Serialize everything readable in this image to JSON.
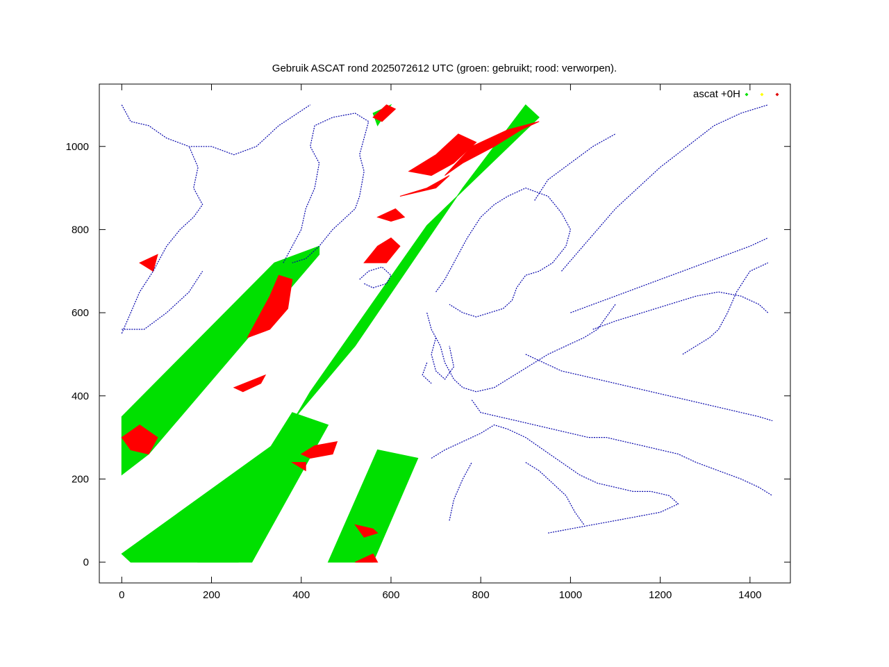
{
  "chart_data": {
    "type": "scatter",
    "title": "Gebruik ASCAT rond 2025072612 UTC (groen: gebruikt; rood: verworpen).",
    "xlabel": "",
    "ylabel": "",
    "xlim": [
      -50,
      1490
    ],
    "ylim": [
      -50,
      1150
    ],
    "x_ticks": [
      0,
      200,
      400,
      600,
      800,
      1000,
      1200,
      1400
    ],
    "y_ticks": [
      0,
      200,
      400,
      600,
      800,
      1000
    ],
    "grid": false,
    "legend": {
      "placement": "top-right",
      "label": "ascat +0H",
      "marker_colors": [
        "#00e000",
        "#ffff00",
        "#e00000"
      ]
    },
    "colors": {
      "used": "#00e000",
      "rejected": "#ff0000",
      "coastline": "#0000aa"
    },
    "swaths_used": [
      [
        [
          0,
          210
        ],
        [
          0,
          350
        ],
        [
          340,
          720
        ],
        [
          440,
          760
        ],
        [
          440,
          740
        ],
        [
          60,
          260
        ]
      ],
      [
        [
          0,
          20
        ],
        [
          20,
          0
        ],
        [
          260,
          0
        ],
        [
          380,
          340
        ],
        [
          520,
          520
        ],
        [
          760,
          900
        ],
        [
          900,
          1100
        ],
        [
          930,
          1070
        ],
        [
          680,
          810
        ],
        [
          420,
          410
        ],
        [
          360,
          300
        ]
      ],
      [
        [
          170,
          0
        ],
        [
          290,
          0
        ],
        [
          460,
          330
        ],
        [
          380,
          360
        ]
      ],
      [
        [
          460,
          0
        ],
        [
          560,
          0
        ],
        [
          660,
          250
        ],
        [
          570,
          270
        ]
      ],
      [
        [
          560,
          1080
        ],
        [
          600,
          1100
        ],
        [
          570,
          1050
        ]
      ]
    ],
    "regions_rejected": [
      [
        [
          280,
          540
        ],
        [
          300,
          580
        ],
        [
          330,
          640
        ],
        [
          350,
          690
        ],
        [
          380,
          680
        ],
        [
          370,
          610
        ],
        [
          330,
          560
        ]
      ],
      [
        [
          0,
          300
        ],
        [
          40,
          330
        ],
        [
          80,
          300
        ],
        [
          60,
          260
        ],
        [
          20,
          270
        ]
      ],
      [
        [
          250,
          420
        ],
        [
          320,
          450
        ],
        [
          310,
          430
        ],
        [
          270,
          410
        ]
      ],
      [
        [
          400,
          260
        ],
        [
          430,
          280
        ],
        [
          480,
          290
        ],
        [
          470,
          260
        ],
        [
          420,
          250
        ]
      ],
      [
        [
          380,
          240
        ],
        [
          410,
          240
        ],
        [
          410,
          220
        ]
      ],
      [
        [
          520,
          90
        ],
        [
          560,
          80
        ],
        [
          570,
          70
        ],
        [
          540,
          60
        ]
      ],
      [
        [
          520,
          0
        ],
        [
          570,
          0
        ],
        [
          560,
          20
        ]
      ],
      [
        [
          540,
          720
        ],
        [
          570,
          760
        ],
        [
          600,
          780
        ],
        [
          620,
          760
        ],
        [
          590,
          720
        ]
      ],
      [
        [
          570,
          830
        ],
        [
          610,
          850
        ],
        [
          630,
          830
        ],
        [
          600,
          820
        ]
      ],
      [
        [
          720,
          930
        ],
        [
          780,
          1000
        ],
        [
          860,
          1040
        ],
        [
          930,
          1060
        ],
        [
          890,
          1040
        ],
        [
          830,
          1000
        ],
        [
          760,
          960
        ]
      ],
      [
        [
          620,
          880
        ],
        [
          680,
          900
        ],
        [
          730,
          930
        ],
        [
          700,
          900
        ]
      ],
      [
        [
          560,
          1070
        ],
        [
          590,
          1100
        ],
        [
          610,
          1090
        ],
        [
          580,
          1060
        ]
      ],
      [
        [
          40,
          720
        ],
        [
          80,
          740
        ],
        [
          70,
          700
        ]
      ],
      [
        [
          640,
          940
        ],
        [
          700,
          980
        ],
        [
          750,
          1030
        ],
        [
          790,
          1010
        ],
        [
          740,
          960
        ],
        [
          690,
          930
        ]
      ]
    ],
    "coastlines": [
      [
        [
          0,
          1100
        ],
        [
          20,
          1060
        ],
        [
          60,
          1050
        ],
        [
          100,
          1020
        ],
        [
          150,
          1000
        ],
        [
          200,
          1000
        ],
        [
          250,
          980
        ],
        [
          300,
          1000
        ],
        [
          350,
          1050
        ],
        [
          420,
          1100
        ]
      ],
      [
        [
          360,
          720
        ],
        [
          380,
          760
        ],
        [
          400,
          800
        ],
        [
          410,
          850
        ],
        [
          430,
          900
        ],
        [
          440,
          960
        ],
        [
          420,
          1000
        ],
        [
          430,
          1050
        ],
        [
          470,
          1070
        ],
        [
          520,
          1080
        ],
        [
          550,
          1060
        ],
        [
          540,
          1020
        ],
        [
          530,
          980
        ],
        [
          540,
          940
        ],
        [
          530,
          880
        ],
        [
          520,
          850
        ],
        [
          490,
          820
        ],
        [
          470,
          800
        ],
        [
          440,
          760
        ],
        [
          410,
          730
        ],
        [
          380,
          720
        ]
      ],
      [
        [
          0,
          550
        ],
        [
          20,
          600
        ],
        [
          40,
          650
        ],
        [
          70,
          700
        ],
        [
          100,
          760
        ],
        [
          130,
          800
        ],
        [
          160,
          830
        ],
        [
          180,
          860
        ],
        [
          160,
          900
        ],
        [
          170,
          950
        ],
        [
          150,
          1000
        ]
      ],
      [
        [
          0,
          560
        ],
        [
          50,
          560
        ],
        [
          100,
          600
        ],
        [
          150,
          650
        ],
        [
          180,
          700
        ]
      ],
      [
        [
          530,
          680
        ],
        [
          550,
          700
        ],
        [
          580,
          710
        ],
        [
          600,
          690
        ],
        [
          590,
          670
        ],
        [
          560,
          660
        ],
        [
          540,
          670
        ]
      ],
      [
        [
          700,
          650
        ],
        [
          720,
          680
        ],
        [
          740,
          720
        ],
        [
          770,
          780
        ],
        [
          800,
          830
        ],
        [
          830,
          860
        ],
        [
          860,
          880
        ],
        [
          900,
          900
        ],
        [
          950,
          880
        ],
        [
          980,
          840
        ],
        [
          1000,
          800
        ],
        [
          990,
          760
        ],
        [
          960,
          720
        ],
        [
          930,
          700
        ],
        [
          900,
          690
        ],
        [
          880,
          660
        ],
        [
          870,
          630
        ],
        [
          850,
          610
        ],
        [
          820,
          600
        ],
        [
          790,
          590
        ],
        [
          760,
          600
        ],
        [
          730,
          620
        ]
      ],
      [
        [
          920,
          870
        ],
        [
          950,
          920
        ],
        [
          1000,
          960
        ],
        [
          1050,
          1000
        ],
        [
          1100,
          1030
        ]
      ],
      [
        [
          680,
          600
        ],
        [
          690,
          560
        ],
        [
          710,
          520
        ],
        [
          720,
          480
        ],
        [
          740,
          440
        ],
        [
          760,
          420
        ],
        [
          790,
          410
        ],
        [
          830,
          420
        ],
        [
          860,
          440
        ],
        [
          890,
          460
        ],
        [
          920,
          480
        ],
        [
          950,
          500
        ],
        [
          990,
          520
        ],
        [
          1030,
          540
        ],
        [
          1060,
          560
        ],
        [
          1080,
          590
        ],
        [
          1100,
          620
        ]
      ],
      [
        [
          700,
          540
        ],
        [
          690,
          500
        ],
        [
          700,
          460
        ],
        [
          720,
          440
        ],
        [
          740,
          470
        ],
        [
          730,
          520
        ]
      ],
      [
        [
          680,
          480
        ],
        [
          670,
          450
        ],
        [
          690,
          430
        ]
      ],
      [
        [
          780,
          390
        ],
        [
          800,
          360
        ],
        [
          840,
          350
        ],
        [
          880,
          340
        ],
        [
          920,
          330
        ],
        [
          960,
          320
        ],
        [
          1000,
          310
        ],
        [
          1040,
          300
        ],
        [
          1080,
          300
        ],
        [
          1120,
          290
        ],
        [
          1160,
          280
        ],
        [
          1200,
          270
        ],
        [
          1240,
          260
        ],
        [
          1280,
          240
        ],
        [
          1330,
          220
        ],
        [
          1380,
          200
        ],
        [
          1420,
          180
        ],
        [
          1450,
          160
        ]
      ],
      [
        [
          690,
          250
        ],
        [
          720,
          270
        ],
        [
          760,
          290
        ],
        [
          800,
          310
        ],
        [
          830,
          330
        ],
        [
          860,
          320
        ],
        [
          900,
          300
        ],
        [
          940,
          270
        ],
        [
          980,
          240
        ],
        [
          1020,
          210
        ],
        [
          1060,
          190
        ],
        [
          1100,
          180
        ],
        [
          1140,
          170
        ],
        [
          1180,
          170
        ],
        [
          1220,
          160
        ],
        [
          1240,
          140
        ],
        [
          1200,
          120
        ],
        [
          1150,
          110
        ],
        [
          1100,
          100
        ],
        [
          1050,
          90
        ],
        [
          1000,
          80
        ],
        [
          950,
          70
        ]
      ],
      [
        [
          730,
          100
        ],
        [
          740,
          150
        ],
        [
          760,
          200
        ],
        [
          780,
          240
        ]
      ],
      [
        [
          900,
          240
        ],
        [
          930,
          220
        ],
        [
          960,
          190
        ],
        [
          990,
          160
        ],
        [
          1010,
          120
        ],
        [
          1030,
          90
        ]
      ],
      [
        [
          1000,
          600
        ],
        [
          1050,
          620
        ],
        [
          1100,
          640
        ],
        [
          1150,
          660
        ],
        [
          1200,
          680
        ],
        [
          1250,
          700
        ],
        [
          1300,
          720
        ],
        [
          1350,
          740
        ],
        [
          1400,
          760
        ],
        [
          1440,
          780
        ]
      ],
      [
        [
          1050,
          560
        ],
        [
          1100,
          580
        ],
        [
          1160,
          600
        ],
        [
          1220,
          620
        ],
        [
          1280,
          640
        ],
        [
          1330,
          650
        ],
        [
          1380,
          640
        ],
        [
          1420,
          620
        ],
        [
          1440,
          600
        ]
      ],
      [
        [
          980,
          700
        ],
        [
          1020,
          750
        ],
        [
          1060,
          800
        ],
        [
          1100,
          850
        ],
        [
          1150,
          900
        ],
        [
          1200,
          950
        ],
        [
          1260,
          1000
        ],
        [
          1320,
          1050
        ],
        [
          1380,
          1080
        ],
        [
          1440,
          1100
        ]
      ],
      [
        [
          900,
          500
        ],
        [
          940,
          480
        ],
        [
          980,
          460
        ],
        [
          1020,
          450
        ],
        [
          1060,
          440
        ],
        [
          1100,
          430
        ],
        [
          1140,
          420
        ],
        [
          1180,
          410
        ],
        [
          1220,
          400
        ],
        [
          1260,
          390
        ],
        [
          1300,
          380
        ],
        [
          1340,
          370
        ],
        [
          1380,
          360
        ],
        [
          1420,
          350
        ],
        [
          1450,
          340
        ]
      ],
      [
        [
          1250,
          500
        ],
        [
          1280,
          520
        ],
        [
          1310,
          540
        ],
        [
          1330,
          560
        ],
        [
          1350,
          600
        ],
        [
          1370,
          650
        ],
        [
          1400,
          700
        ],
        [
          1440,
          720
        ]
      ]
    ]
  }
}
